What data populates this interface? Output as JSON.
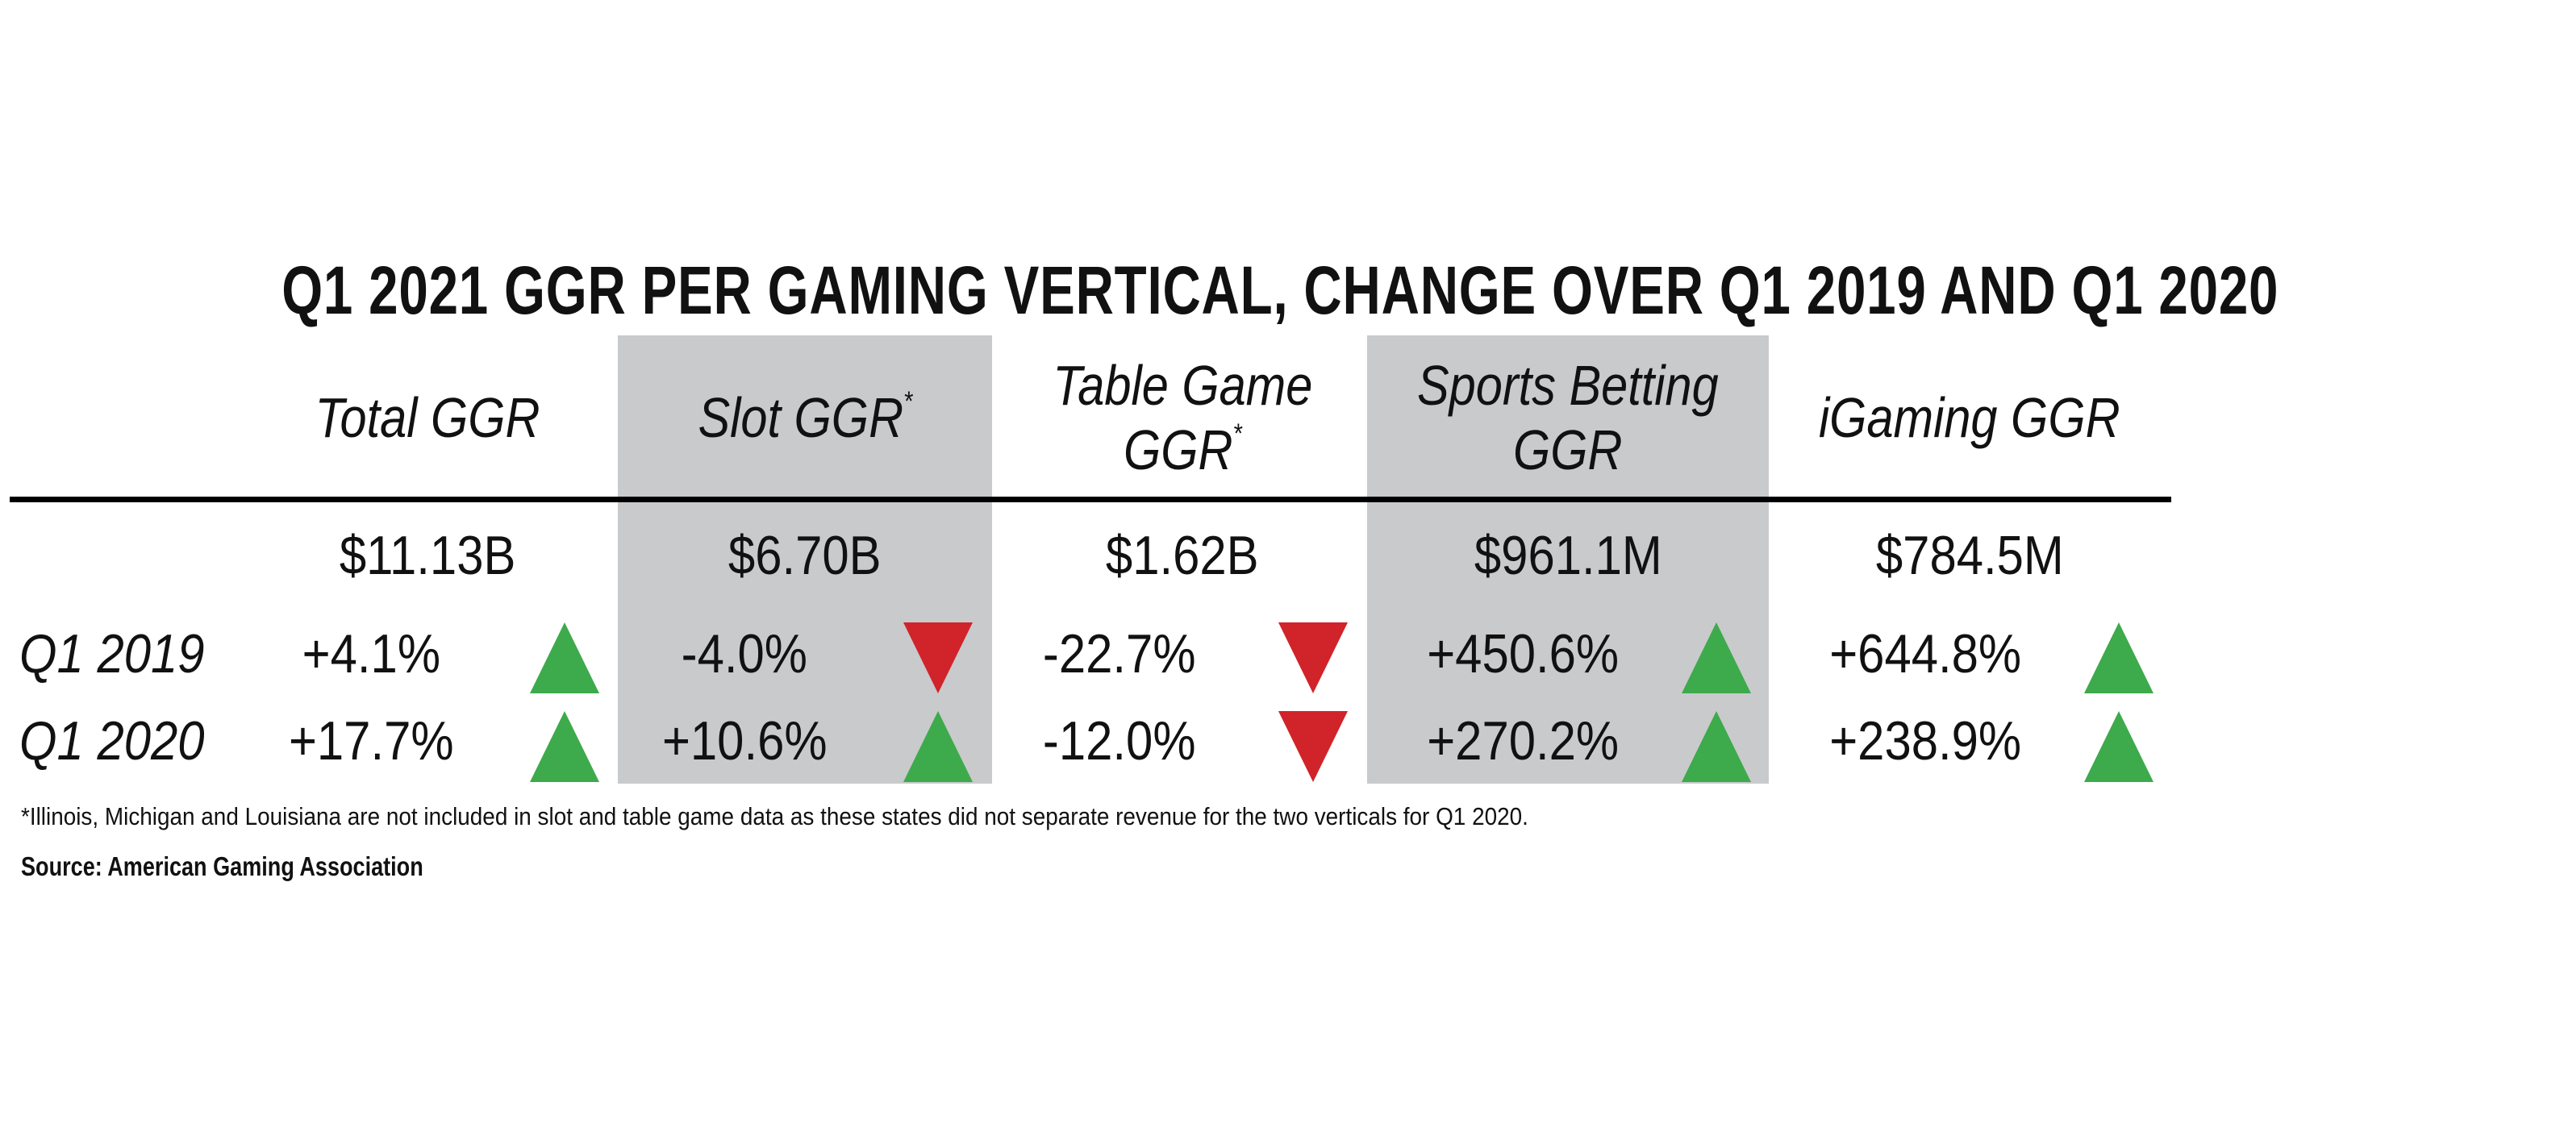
{
  "chart_data": {
    "type": "table",
    "title": "Q1 2021 GGR PER GAMING VERTICAL, CHANGE OVER Q1 2019 AND Q1 2020",
    "columns": [
      {
        "label": "Total GGR",
        "note": "",
        "shaded": false,
        "value": "$11.13B",
        "q1_2019": "+4.1%",
        "q1_2019_dir": "up",
        "q1_2020": "+17.7%",
        "q1_2020_dir": "up"
      },
      {
        "label": "Slot GGR",
        "note": "*",
        "shaded": true,
        "value": "$6.70B",
        "q1_2019": "-4.0%",
        "q1_2019_dir": "down",
        "q1_2020": "+10.6%",
        "q1_2020_dir": "up"
      },
      {
        "label": "Table Game GGR",
        "label_line1": "Table Game",
        "label_line2": "GGR",
        "note": "*",
        "shaded": false,
        "value": "$1.62B",
        "q1_2019": "-22.7%",
        "q1_2019_dir": "down",
        "q1_2020": "-12.0%",
        "q1_2020_dir": "down"
      },
      {
        "label": "Sports Betting GGR",
        "label_line1": "Sports Betting",
        "label_line2": "GGR",
        "note": "",
        "shaded": true,
        "value": "$961.1M",
        "q1_2019": "+450.6%",
        "q1_2019_dir": "up",
        "q1_2020": "+270.2%",
        "q1_2020_dir": "up"
      },
      {
        "label": "iGaming GGR",
        "note": "",
        "shaded": false,
        "value": "$784.5M",
        "q1_2019": "+644.8%",
        "q1_2019_dir": "up",
        "q1_2020": "+238.9%",
        "q1_2020_dir": "up"
      }
    ],
    "row_labels": [
      "Q1 2019",
      "Q1 2020"
    ],
    "footnote": "*Illinois, Michigan and Louisiana are not included in slot and table game data as these states did not separate revenue for the two verticals for Q1 2020.",
    "source": "Source: American Gaming Association",
    "colors": {
      "up": "#3daa4b",
      "down": "#d1232a",
      "shade": "#c9cacc"
    }
  }
}
